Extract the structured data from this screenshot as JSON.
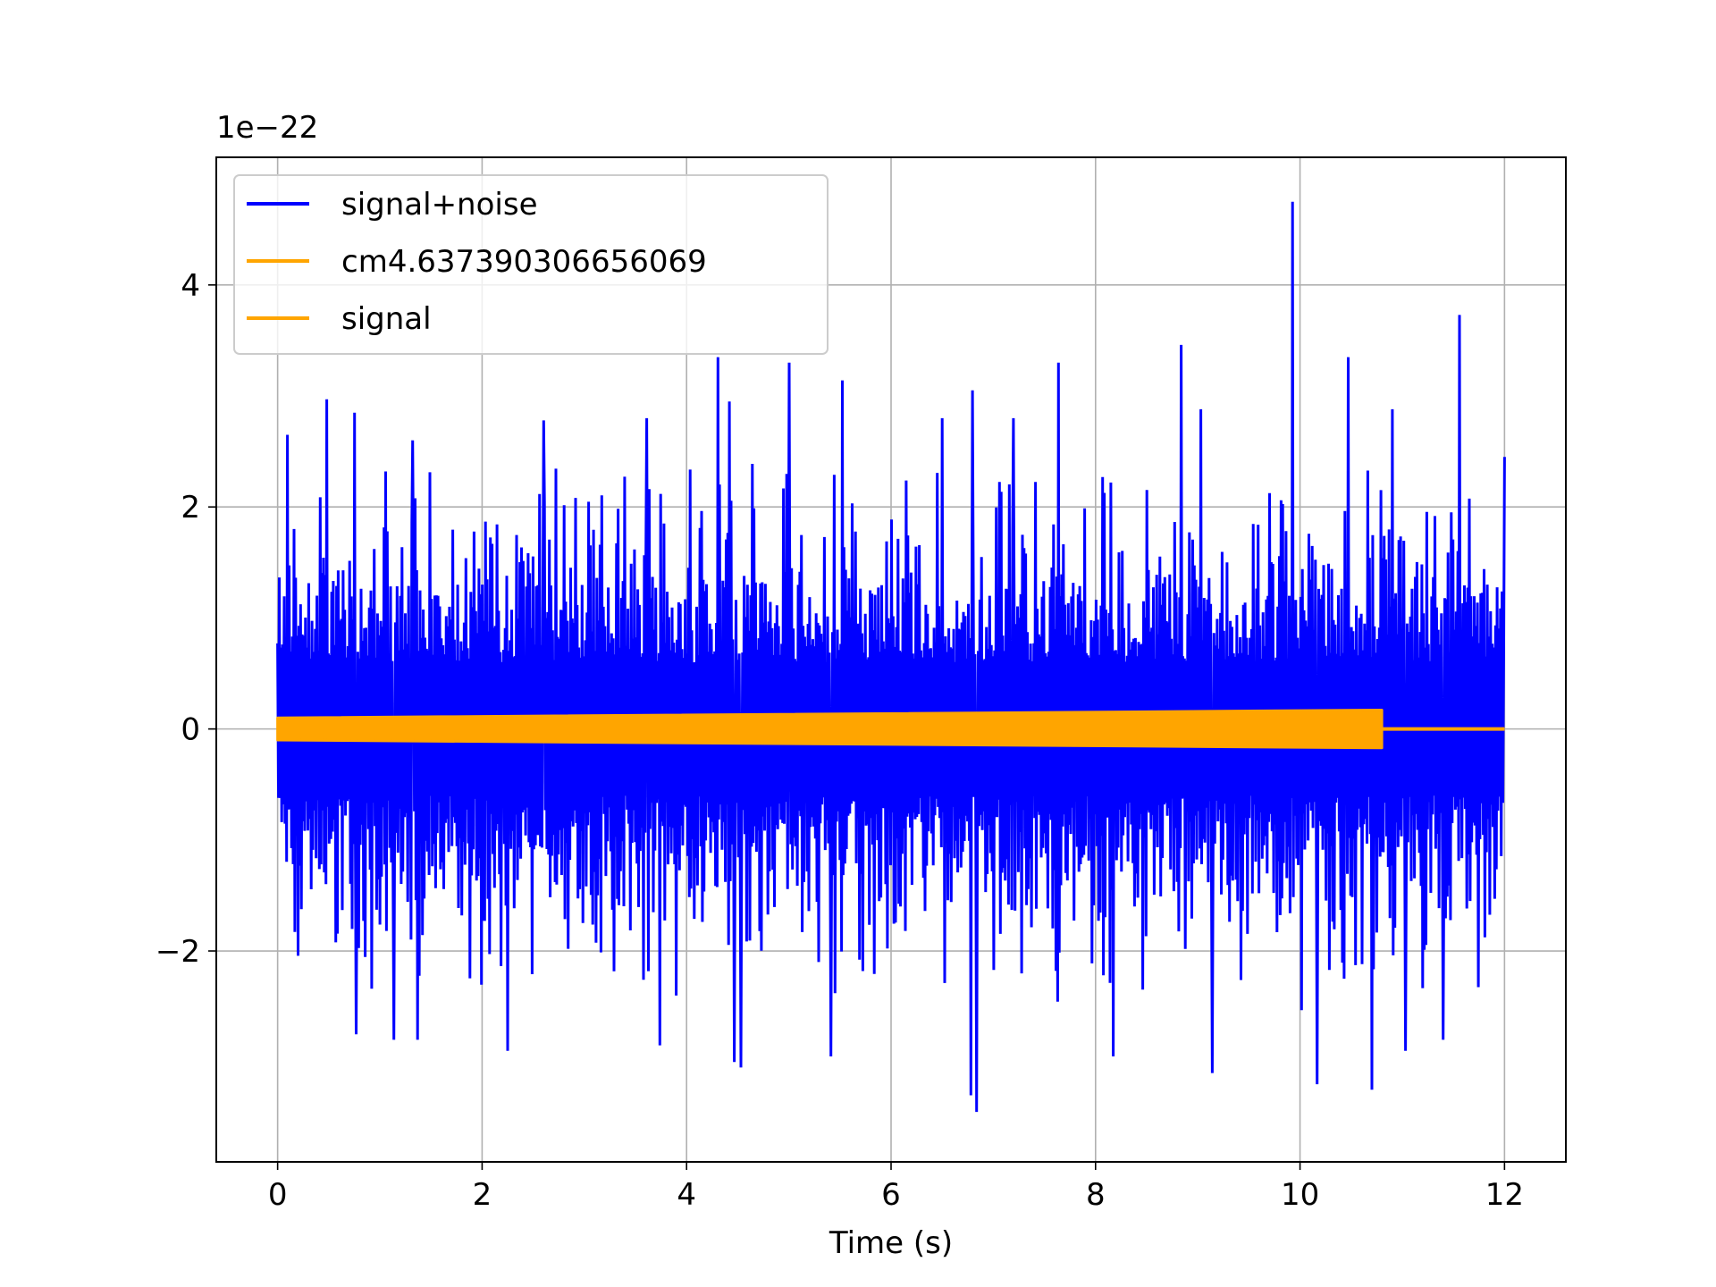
{
  "chart_data": {
    "type": "line",
    "xlabel": "Time (s)",
    "ylabel": "",
    "offset_label": "1e−22",
    "xlim": [
      -0.6,
      12.6
    ],
    "ylim": [
      -3.9,
      5.15
    ],
    "xticks": [
      0,
      2,
      4,
      6,
      8,
      10,
      12
    ],
    "xtick_labels": [
      "0",
      "2",
      "4",
      "6",
      "8",
      "10",
      "12"
    ],
    "yticks": [
      -2,
      0,
      2,
      4
    ],
    "ytick_labels": [
      "−2",
      "0",
      "2",
      "4"
    ],
    "grid": true,
    "legend_position": "upper-left",
    "series": [
      {
        "name": "signal+noise",
        "color": "#0000ff",
        "x_range": [
          0,
          12
        ],
        "envelope_upper_typical": 1.5,
        "envelope_lower_typical": -1.4,
        "peaks": [
          {
            "x": 9.93,
            "y": 4.75
          },
          {
            "x": 11.56,
            "y": 3.73
          },
          {
            "x": 8.84,
            "y": 3.46
          },
          {
            "x": 4.31,
            "y": 3.35
          },
          {
            "x": 10.47,
            "y": 3.35
          },
          {
            "x": 5.0,
            "y": 3.3
          },
          {
            "x": 7.64,
            "y": 3.3
          },
          {
            "x": 5.52,
            "y": 3.14
          },
          {
            "x": 0.48,
            "y": 2.97
          },
          {
            "x": 6.8,
            "y": 3.05
          },
          {
            "x": 4.42,
            "y": 2.95
          },
          {
            "x": 0.1,
            "y": 2.65
          },
          {
            "x": 0.75,
            "y": 2.85
          },
          {
            "x": 1.32,
            "y": 2.6
          },
          {
            "x": 2.6,
            "y": 2.78
          },
          {
            "x": 3.61,
            "y": 2.8
          },
          {
            "x": 6.5,
            "y": 2.8
          },
          {
            "x": 7.2,
            "y": 2.8
          },
          {
            "x": 9.03,
            "y": 2.88
          },
          {
            "x": 10.9,
            "y": 2.88
          },
          {
            "x": 12.0,
            "y": 2.45
          },
          {
            "x": 6.84,
            "y": -3.45
          },
          {
            "x": 6.78,
            "y": -3.3
          },
          {
            "x": 10.17,
            "y": -3.2
          },
          {
            "x": 10.7,
            "y": -3.25
          },
          {
            "x": 4.47,
            "y": -3.0
          },
          {
            "x": 4.53,
            "y": -3.05
          },
          {
            "x": 9.14,
            "y": -3.1
          },
          {
            "x": 2.25,
            "y": -2.9
          },
          {
            "x": 1.14,
            "y": -2.8
          },
          {
            "x": 1.37,
            "y": -2.8
          },
          {
            "x": 0.77,
            "y": -2.75
          },
          {
            "x": 3.74,
            "y": -2.85
          },
          {
            "x": 5.41,
            "y": -2.95
          },
          {
            "x": 11.03,
            "y": -2.9
          },
          {
            "x": 11.4,
            "y": -2.8
          },
          {
            "x": 8.17,
            "y": -2.95
          }
        ]
      },
      {
        "name": "cm4.637390306656069",
        "color": "#ffa500",
        "x_range": [
          0,
          10.8
        ],
        "amplitude_start": 0.1,
        "amplitude_end": 0.17
      },
      {
        "name": "signal",
        "color": "#ffa500",
        "x_range": [
          0,
          12
        ],
        "note_visible": "flat line at 0 after x=10.8"
      }
    ]
  }
}
